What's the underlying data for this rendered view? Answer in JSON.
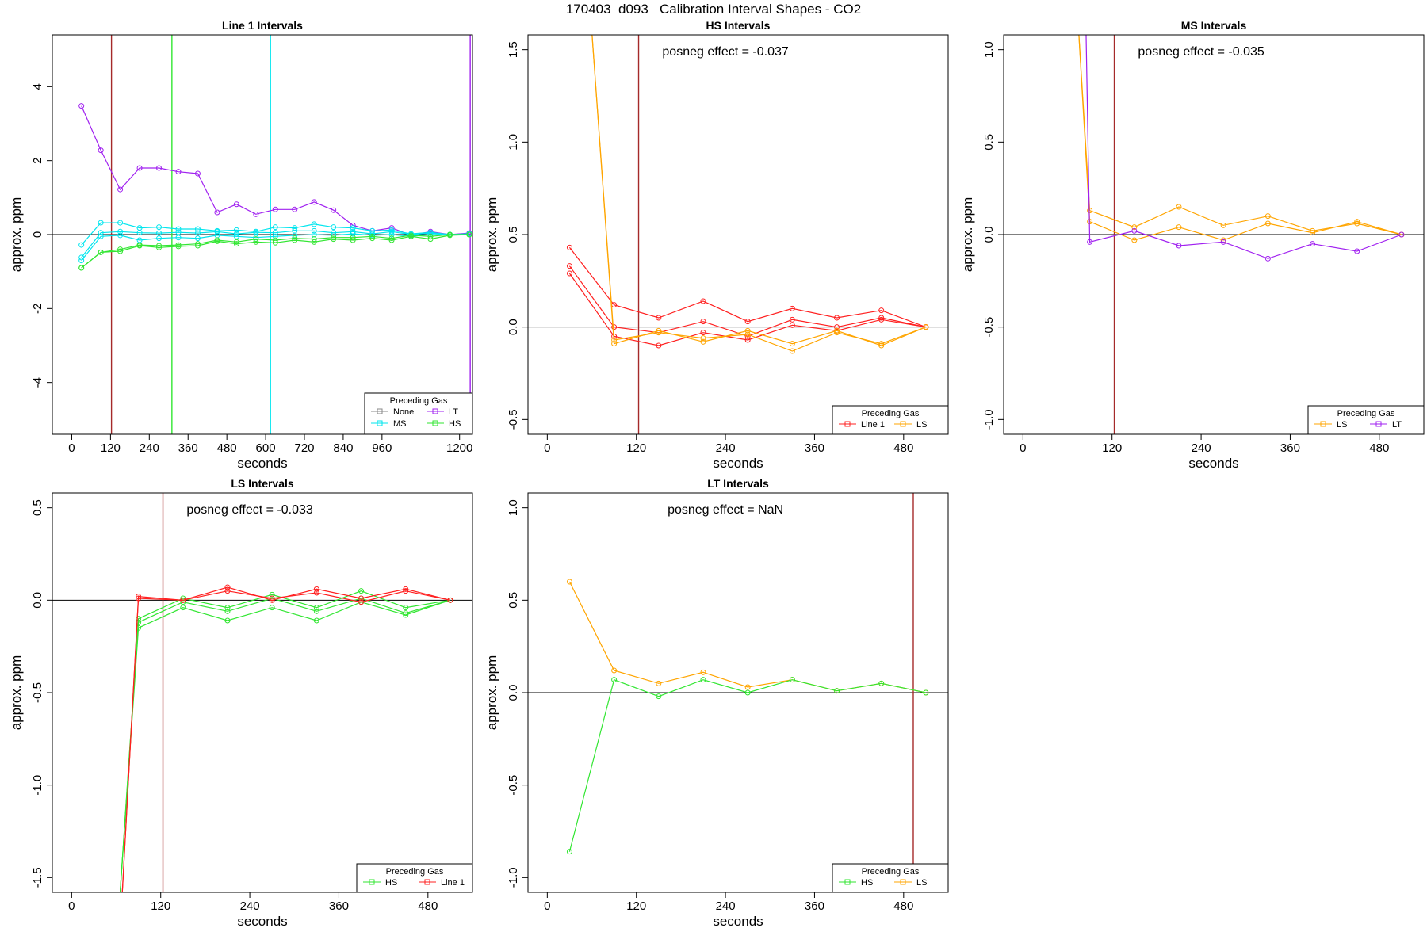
{
  "page_title": "170403  d093   Calibration Interval Shapes - CO2",
  "chart_data": [
    {
      "type": "line",
      "title": "Line 1 Intervals",
      "xlabel": "seconds",
      "ylabel": "approx. ppm",
      "annotation": "",
      "xlim": [
        -60,
        1240
      ],
      "ylim": [
        -5.4,
        5.4
      ],
      "xticks": [
        0,
        120,
        240,
        360,
        480,
        600,
        720,
        840,
        960,
        1200
      ],
      "yticks": [
        -4,
        -2,
        0,
        2,
        4
      ],
      "vlines": [
        {
          "x": 123,
          "color": "#a52a2a"
        },
        {
          "x": 310,
          "color": "#32e632"
        },
        {
          "x": 615,
          "color": "#00e5ee"
        },
        {
          "x": 1233,
          "color": "#a020f0"
        }
      ],
      "legend": {
        "title": "Preceding Gas",
        "entries": [
          {
            "label": "None",
            "color": "#888888"
          },
          {
            "label": "LT",
            "color": "#a020f0"
          },
          {
            "label": "MS",
            "color": "#00e5ee"
          },
          {
            "label": "HS",
            "color": "#32e632"
          }
        ]
      },
      "series": [
        {
          "color": "#a020f0",
          "x": [
            30,
            90,
            150,
            210,
            270,
            330,
            390,
            450,
            510,
            570,
            630,
            690,
            750,
            810,
            870,
            930,
            990,
            1050,
            1110,
            1170,
            1230
          ],
          "y": [
            3.48,
            2.28,
            1.22,
            1.8,
            1.8,
            1.7,
            1.65,
            0.6,
            0.82,
            0.55,
            0.68,
            0.68,
            0.88,
            0.66,
            0.25,
            0.1,
            0.18,
            -0.02,
            0.08,
            0.0,
            0.04
          ]
        },
        {
          "color": "#00e5ee",
          "x": [
            30,
            90,
            150,
            210,
            270,
            330,
            390,
            450,
            510,
            570,
            630,
            690,
            750,
            810,
            870,
            930,
            990,
            1050,
            1110,
            1170,
            1230
          ],
          "y": [
            -0.28,
            0.32,
            0.32,
            0.18,
            0.2,
            0.15,
            0.15,
            0.1,
            0.12,
            0.08,
            0.2,
            0.18,
            0.28,
            0.2,
            0.18,
            0.1,
            0.12,
            0.02,
            0.06,
            0.0,
            0.02
          ]
        },
        {
          "color": "#00e5ee",
          "x": [
            30,
            90,
            150,
            210,
            270,
            330,
            390,
            450,
            510,
            570,
            630,
            690,
            750,
            810,
            870,
            930,
            990,
            1050,
            1110,
            1170,
            1230
          ],
          "y": [
            -0.62,
            0.05,
            0.08,
            0.05,
            0.04,
            0.06,
            0.04,
            0.08,
            0.02,
            0.06,
            0.05,
            0.1,
            0.1,
            0.05,
            0.08,
            0.02,
            0.08,
            0.0,
            0.04,
            0.0,
            0.02
          ]
        },
        {
          "color": "#00e5ee",
          "x": [
            30,
            90,
            150,
            210,
            270,
            330,
            390,
            450,
            510,
            570,
            630,
            690,
            750,
            810,
            870,
            930,
            990,
            1050,
            1110,
            1170,
            1230
          ],
          "y": [
            -0.7,
            -0.05,
            -0.02,
            -0.15,
            -0.1,
            -0.08,
            -0.1,
            -0.02,
            -0.05,
            -0.08,
            -0.05,
            -0.02,
            0.0,
            -0.02,
            0.02,
            -0.02,
            0.0,
            -0.05,
            0.0,
            0.0,
            0.0
          ]
        },
        {
          "color": "#32e632",
          "x": [
            30,
            90,
            150,
            210,
            270,
            330,
            390,
            450,
            510,
            570,
            630,
            690,
            750,
            810,
            870,
            930,
            990,
            1050,
            1110,
            1170,
            1230
          ],
          "y": [
            -0.9,
            -0.48,
            -0.45,
            -0.3,
            -0.35,
            -0.32,
            -0.3,
            -0.18,
            -0.25,
            -0.2,
            -0.22,
            -0.15,
            -0.2,
            -0.12,
            -0.15,
            -0.1,
            -0.15,
            -0.05,
            -0.12,
            -0.02,
            0.0
          ]
        },
        {
          "color": "#32e632",
          "x": [
            30,
            90,
            150,
            210,
            270,
            330,
            390,
            450,
            510,
            570,
            630,
            690,
            750,
            810,
            870,
            930,
            990,
            1050,
            1110,
            1170,
            1230
          ],
          "y": [
            -0.9,
            -0.48,
            -0.4,
            -0.28,
            -0.3,
            -0.28,
            -0.25,
            -0.15,
            -0.2,
            -0.12,
            -0.15,
            -0.1,
            -0.12,
            -0.08,
            -0.08,
            -0.05,
            -0.1,
            -0.02,
            -0.05,
            0.0,
            0.0
          ]
        }
      ]
    },
    {
      "type": "line",
      "title": "HS Intervals",
      "xlabel": "seconds",
      "ylabel": "approx. ppm",
      "annotation": "posneg effect = -0.037",
      "xlim": [
        -26,
        540
      ],
      "ylim": [
        -0.58,
        1.58
      ],
      "xticks": [
        0,
        120,
        240,
        360,
        480
      ],
      "yticks": [
        -0.5,
        0.0,
        0.5,
        1.0,
        1.5
      ],
      "vlines": [
        {
          "x": 123,
          "color": "#a52a2a"
        }
      ],
      "legend": {
        "title": "Preceding Gas",
        "entries": [
          {
            "label": "Line 1",
            "color": "#ff2020"
          },
          {
            "label": "LS",
            "color": "#ffa500"
          }
        ]
      },
      "series": [
        {
          "color": "#ff2020",
          "x": [
            30,
            90,
            150,
            210,
            270,
            330,
            390,
            450,
            510
          ],
          "y": [
            0.43,
            0.12,
            0.05,
            0.14,
            0.03,
            0.1,
            0.05,
            0.09,
            0.0
          ]
        },
        {
          "color": "#ff2020",
          "x": [
            30,
            90,
            150,
            210,
            270,
            330,
            390,
            450,
            510
          ],
          "y": [
            0.33,
            0.0,
            -0.03,
            0.03,
            -0.05,
            0.04,
            0.0,
            0.05,
            0.0
          ]
        },
        {
          "color": "#ff2020",
          "x": [
            30,
            90,
            150,
            210,
            270,
            330,
            390,
            450,
            510
          ],
          "y": [
            0.29,
            -0.05,
            -0.1,
            -0.03,
            -0.07,
            0.01,
            -0.02,
            0.04,
            0.0
          ]
        },
        {
          "color": "#ffa500",
          "x": [
            60,
            90,
            150,
            210,
            270,
            330,
            390,
            450,
            510
          ],
          "y": [
            1.6,
            -0.09,
            -0.02,
            -0.08,
            -0.02,
            -0.09,
            -0.02,
            -0.1,
            0.0
          ]
        },
        {
          "color": "#ffa500",
          "x": [
            60,
            90,
            150,
            210,
            270,
            330,
            390,
            450,
            510
          ],
          "y": [
            1.6,
            -0.07,
            -0.03,
            -0.06,
            -0.04,
            -0.13,
            -0.03,
            -0.09,
            0.0
          ]
        }
      ]
    },
    {
      "type": "line",
      "title": "MS Intervals",
      "xlabel": "seconds",
      "ylabel": "approx. ppm",
      "annotation": "posneg effect = -0.035",
      "xlim": [
        -26,
        540
      ],
      "ylim": [
        -1.08,
        1.08
      ],
      "xticks": [
        0,
        120,
        240,
        360,
        480
      ],
      "yticks": [
        -1.0,
        -0.5,
        0.0,
        0.5,
        1.0
      ],
      "vlines": [
        {
          "x": 123,
          "color": "#a52a2a"
        }
      ],
      "legend": {
        "title": "Preceding Gas",
        "entries": [
          {
            "label": "LS",
            "color": "#ffa500"
          },
          {
            "label": "LT",
            "color": "#a020f0"
          }
        ]
      },
      "series": [
        {
          "color": "#ffa500",
          "x": [
            75,
            90,
            150,
            210,
            270,
            330,
            390,
            450,
            510
          ],
          "y": [
            1.1,
            0.13,
            0.04,
            0.15,
            0.05,
            0.1,
            0.02,
            0.06,
            0.0
          ]
        },
        {
          "color": "#ffa500",
          "x": [
            75,
            90,
            150,
            210,
            270,
            330,
            390,
            450,
            510
          ],
          "y": [
            1.1,
            0.07,
            -0.03,
            0.04,
            -0.03,
            0.06,
            0.01,
            0.07,
            0.0
          ]
        },
        {
          "color": "#a020f0",
          "x": [
            85,
            90,
            150,
            210,
            270,
            330,
            390,
            450,
            510
          ],
          "y": [
            1.1,
            -0.04,
            0.02,
            -0.06,
            -0.04,
            -0.13,
            -0.05,
            -0.09,
            0.0
          ]
        }
      ]
    },
    {
      "type": "line",
      "title": "LS Intervals",
      "xlabel": "seconds",
      "ylabel": "approx. ppm",
      "annotation": "posneg effect = -0.033",
      "xlim": [
        -26,
        540
      ],
      "ylim": [
        -1.58,
        0.58
      ],
      "xticks": [
        0,
        120,
        240,
        360,
        480
      ],
      "yticks": [
        -1.5,
        -1.0,
        -0.5,
        0.0,
        0.5
      ],
      "vlines": [
        {
          "x": 123,
          "color": "#a52a2a"
        }
      ],
      "legend": {
        "title": "Preceding Gas",
        "entries": [
          {
            "label": "HS",
            "color": "#32e632"
          },
          {
            "label": "Line 1",
            "color": "#ff2020"
          }
        ]
      },
      "series": [
        {
          "color": "#32e632",
          "x": [
            65,
            90,
            150,
            210,
            270,
            330,
            390,
            450,
            510
          ],
          "y": [
            -1.6,
            -0.1,
            0.01,
            -0.04,
            0.03,
            -0.04,
            0.05,
            -0.04,
            0.0
          ]
        },
        {
          "color": "#32e632",
          "x": [
            65,
            90,
            150,
            210,
            270,
            330,
            390,
            450,
            510
          ],
          "y": [
            -1.6,
            -0.12,
            -0.01,
            -0.06,
            0.01,
            -0.06,
            0.01,
            -0.07,
            0.0
          ]
        },
        {
          "color": "#32e632",
          "x": [
            65,
            90,
            150,
            210,
            270,
            330,
            390,
            450,
            510
          ],
          "y": [
            -1.6,
            -0.15,
            -0.04,
            -0.11,
            -0.04,
            -0.11,
            -0.01,
            -0.08,
            0.0
          ]
        },
        {
          "color": "#ff2020",
          "x": [
            68,
            90,
            150,
            210,
            270,
            330,
            390,
            450,
            510
          ],
          "y": [
            -1.6,
            0.02,
            0.0,
            0.07,
            0.0,
            0.06,
            0.01,
            0.06,
            0.0
          ]
        },
        {
          "color": "#ff2020",
          "x": [
            68,
            90,
            150,
            210,
            270,
            330,
            390,
            450,
            510
          ],
          "y": [
            -1.6,
            0.01,
            0.0,
            0.05,
            0.01,
            0.04,
            -0.01,
            0.05,
            0.0
          ]
        }
      ]
    },
    {
      "type": "line",
      "title": "LT Intervals",
      "xlabel": "seconds",
      "ylabel": "approx. ppm",
      "annotation": "posneg effect = NaN",
      "xlim": [
        -26,
        540
      ],
      "ylim": [
        -1.08,
        1.08
      ],
      "xticks": [
        0,
        120,
        240,
        360,
        480
      ],
      "yticks": [
        -1.0,
        -0.5,
        0.0,
        0.5,
        1.0
      ],
      "vlines": [
        {
          "x": 493,
          "color": "#a52a2a"
        }
      ],
      "legend": {
        "title": "Preceding Gas",
        "entries": [
          {
            "label": "HS",
            "color": "#32e632"
          },
          {
            "label": "LS",
            "color": "#ffa500"
          }
        ]
      },
      "series": [
        {
          "color": "#ffa500",
          "x": [
            30,
            90,
            150,
            210,
            270,
            330,
            390,
            450,
            510
          ],
          "y": [
            0.6,
            0.12,
            0.05,
            0.11,
            0.03,
            0.07,
            0.01,
            0.05,
            0.0
          ]
        },
        {
          "color": "#32e632",
          "x": [
            30,
            90,
            150,
            210,
            270,
            330,
            390,
            450,
            510
          ],
          "y": [
            -0.86,
            0.07,
            -0.02,
            0.07,
            0.0,
            0.07,
            0.01,
            0.05,
            0.0
          ]
        }
      ]
    }
  ]
}
